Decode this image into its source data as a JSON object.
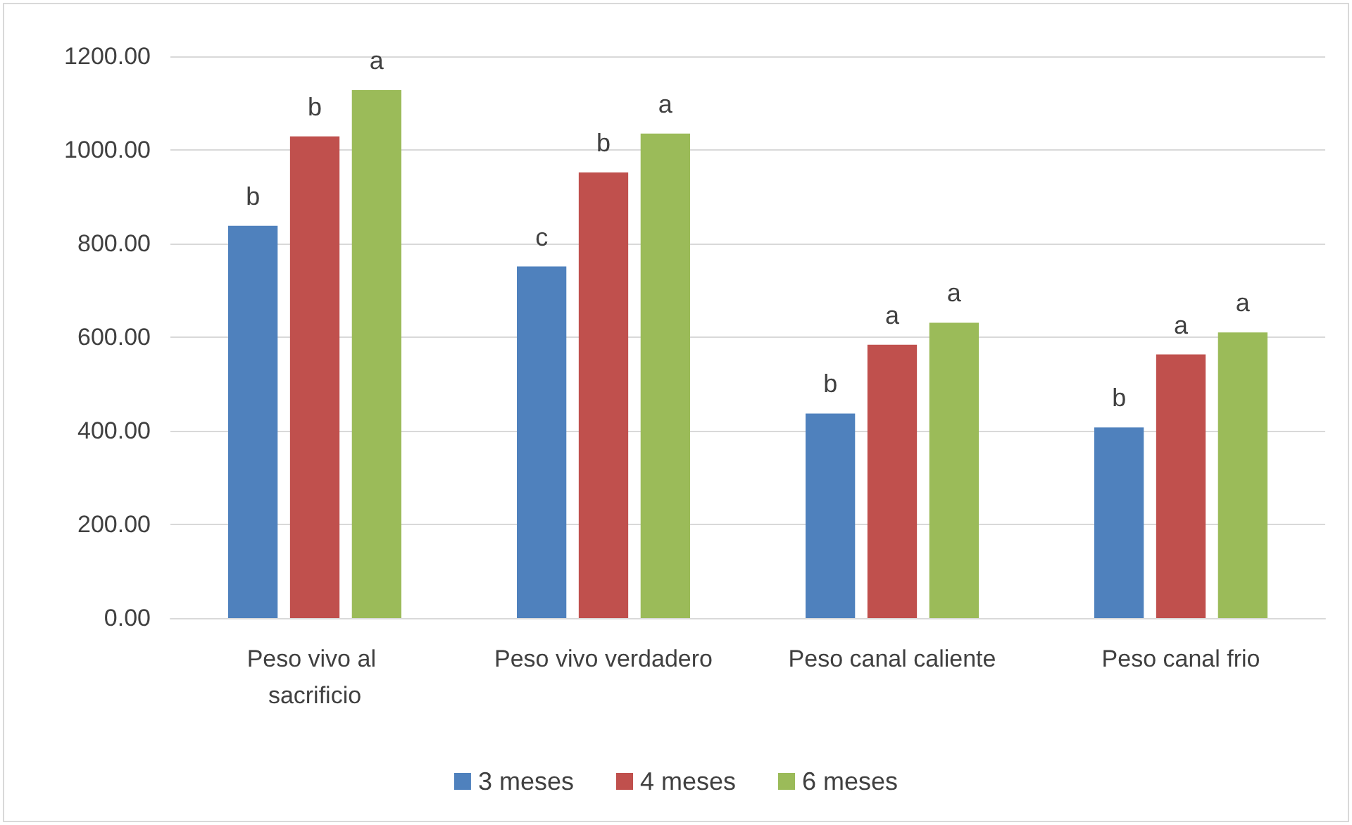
{
  "chart_data": {
    "type": "bar",
    "categories": [
      "Peso vivo al sacrificio",
      "Peso vivo verdadero",
      "Peso canal caliente",
      "Peso canal frio"
    ],
    "series": [
      {
        "name": "3 meses",
        "color": "#4f81bd",
        "values": [
          838,
          751,
          437,
          407
        ],
        "value_labels": [
          "b",
          "c",
          "b",
          "b"
        ]
      },
      {
        "name": "4 meses",
        "color": "#c0504d",
        "values": [
          1029,
          952,
          584,
          563
        ],
        "value_labels": [
          "b",
          "b",
          "a",
          "a"
        ]
      },
      {
        "name": "6 meses",
        "color": "#9bbb59",
        "values": [
          1128,
          1035,
          631,
          610
        ],
        "value_labels": [
          "a",
          "a",
          "a",
          "a"
        ]
      }
    ],
    "ylim": [
      0,
      1200
    ],
    "yticks": [
      {
        "value": 0,
        "label": "0.00"
      },
      {
        "value": 200,
        "label": "200.00"
      },
      {
        "value": 400,
        "label": "400.00"
      },
      {
        "value": 600,
        "label": "600.00"
      },
      {
        "value": 800,
        "label": "800.00"
      },
      {
        "value": 1000,
        "label": "1000.00"
      },
      {
        "value": 1200,
        "label": "1200.00"
      }
    ],
    "grid": "y",
    "legend": "bottom"
  }
}
